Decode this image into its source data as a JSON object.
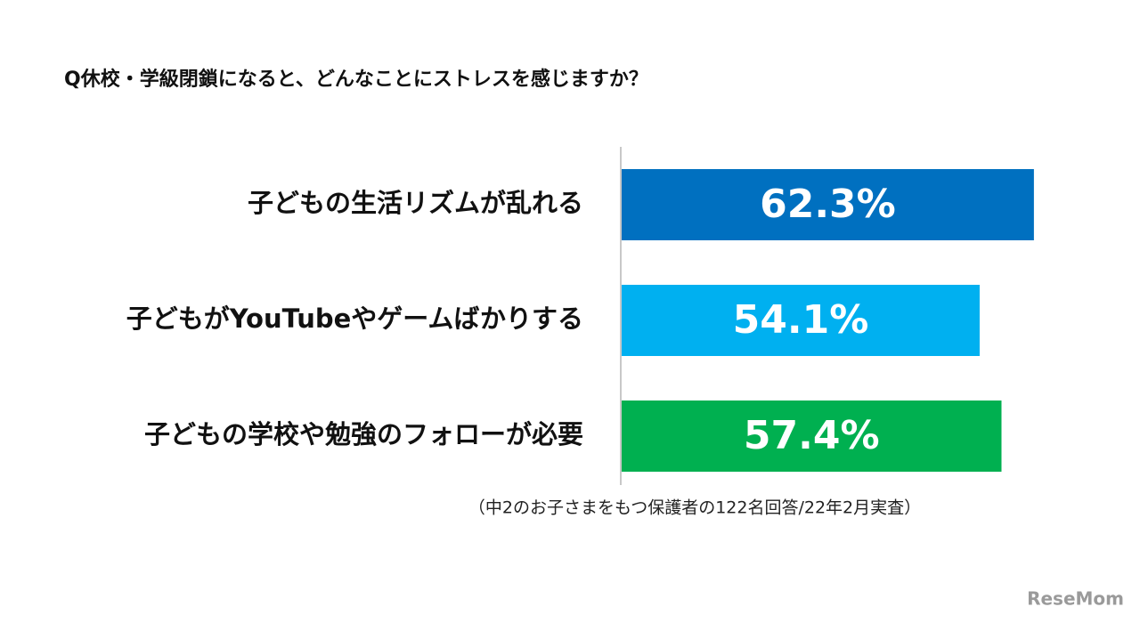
{
  "chart_data": {
    "type": "bar",
    "title": "Q休校・学級閉鎖になると、どんなことにストレスを感じますか？",
    "categories": [
      "子どもの生活リズムが乱れる",
      "子どもがYouTubeやゲームばかりする",
      "子どもの学校や勉強のフォローが必要"
    ],
    "values": [
      62.3,
      54.1,
      57.4
    ],
    "value_labels": [
      "62.3%",
      "54.1%",
      "57.4%"
    ],
    "colors": [
      "#0070c0",
      "#00b0f0",
      "#00b050"
    ],
    "note": "（中2のお子さまをもつ保護者の122名回答/22年2月実査）",
    "watermark": "ReseMom"
  }
}
